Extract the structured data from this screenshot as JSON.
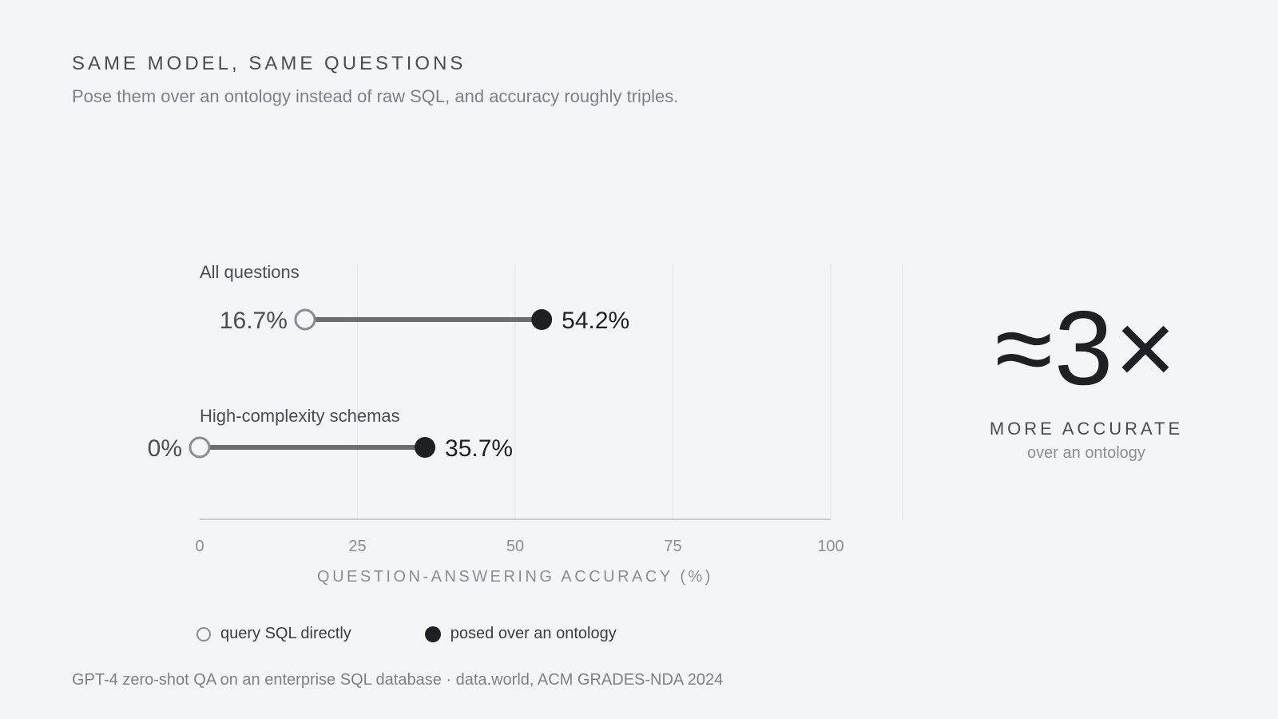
{
  "header": {
    "eyebrow": "SAME MODEL, SAME QUESTIONS",
    "subtitle": "Pose them over an ontology instead of raw SQL, and accuracy roughly triples."
  },
  "callout": {
    "value": "≈3×",
    "label": "MORE ACCURATE",
    "sublabel": "over an ontology"
  },
  "legend": {
    "sql_label": "query SQL directly",
    "ontology_label": "posed over an ontology"
  },
  "footer": {
    "source": "GPT-4 zero-shot QA on an enterprise SQL database · data.world, ACM GRADES-NDA 2024"
  },
  "colors": {
    "background": "#f4f5f7",
    "ontology": "#1f2023",
    "sql": "#8a8e94",
    "connector": "#6b6e73",
    "grid": "#e3e5e8"
  },
  "chart_data": {
    "type": "dumbbell",
    "xlabel": "QUESTION-ANSWERING ACCURACY (%)",
    "xlim": [
      0,
      100
    ],
    "xticks": [
      0,
      25,
      50,
      75,
      100
    ],
    "grid": true,
    "categories": [
      "All questions",
      "High-complexity schemas"
    ],
    "series": [
      {
        "name": "query SQL directly",
        "values": [
          16.7,
          0
        ],
        "labels": [
          "16.7%",
          "0%"
        ]
      },
      {
        "name": "posed over an ontology",
        "values": [
          54.2,
          35.7
        ],
        "labels": [
          "54.2%",
          "35.7%"
        ]
      }
    ]
  }
}
